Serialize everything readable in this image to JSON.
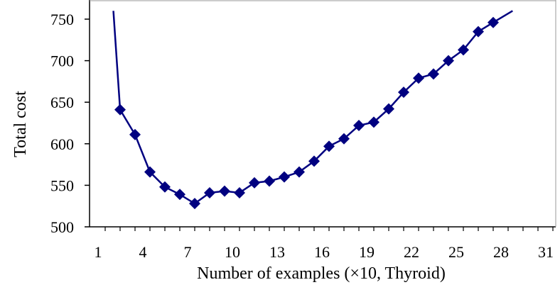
{
  "chart_data": {
    "type": "line",
    "title": "",
    "xlabel": "Number of examples (×10, Thyroid)",
    "ylabel": "Total cost",
    "xlim": [
      1,
      32
    ],
    "ylim": [
      500,
      760
    ],
    "x_ticks": [
      1,
      4,
      7,
      10,
      13,
      16,
      19,
      22,
      25,
      28,
      31
    ],
    "y_ticks": [
      500,
      550,
      600,
      650,
      700,
      750
    ],
    "grid": false,
    "legend": "none",
    "colors": {
      "series": "#000080",
      "axis": "#000000"
    },
    "series": [
      {
        "x": [
          2,
          3,
          4,
          5,
          6,
          7,
          8,
          9,
          10,
          11,
          12,
          13,
          14,
          15,
          16,
          17,
          18,
          19,
          20,
          21,
          22,
          23,
          24,
          25,
          26,
          27
        ],
        "values": [
          641,
          611,
          566,
          548,
          539,
          528,
          541,
          543,
          541,
          553,
          555,
          560,
          566,
          579,
          597,
          606,
          622,
          626,
          642,
          662,
          679,
          684,
          700,
          713,
          735,
          746
        ]
      }
    ],
    "curve_extension": {
      "start": {
        "x": 1.55,
        "y": 760
      },
      "end": {
        "x": 28.3,
        "y": 760
      }
    }
  }
}
